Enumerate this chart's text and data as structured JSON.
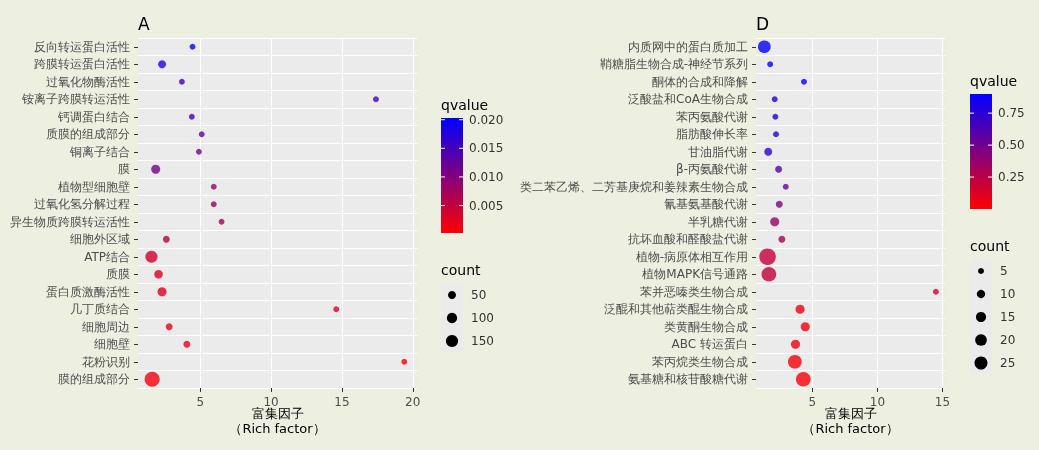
{
  "chart_data": [
    {
      "type": "bubble",
      "title": "A",
      "xlabel": "富集因子（Rich factor）",
      "orientation": "horizontal",
      "grid": true,
      "clabel": "qvalue",
      "legend_title": "count",
      "categories": [
        "反向转运蛋白活性",
        "跨膜转运蛋白活性",
        "过氧化物酶活性",
        "铵离子跨膜转运活性",
        "钙调蛋白结合",
        "质膜的组成部分",
        "铜离子结合",
        "膜",
        "植物型细胞壁",
        "过氧化氢分解过程",
        "异生物质跨膜转运活性",
        "细胞外区域",
        "ATP结合",
        "质膜",
        "蛋白质激酶活性",
        "几丁质结合",
        "细胞周边",
        "细胞壁",
        "花粉识别",
        "膜的组成部分"
      ],
      "values": [
        4.45,
        2.3,
        3.7,
        17.4,
        4.4,
        5.1,
        4.9,
        1.85,
        5.95,
        5.95,
        6.5,
        2.6,
        1.55,
        2.05,
        2.3,
        14.6,
        2.8,
        4.05,
        19.4,
        1.6
      ],
      "sizes": [
        20,
        50,
        20,
        20,
        20,
        20,
        20,
        70,
        20,
        20,
        20,
        33,
        150,
        60,
        70,
        20,
        33,
        33,
        20,
        250
      ],
      "cvalues": [
        0.02,
        0.017,
        0.015,
        0.015,
        0.015,
        0.013,
        0.011,
        0.011,
        0.008,
        0.008,
        0.007,
        0.006,
        0.004,
        0.003,
        0.003,
        0.003,
        0.002,
        0.002,
        0.001,
        0.001
      ],
      "size_legend": [
        50,
        100,
        150
      ],
      "clim": [
        0.0002,
        0.0203
      ],
      "cticks": [
        0.005,
        {
          "value": 0.01,
          "label": "0.010"
        },
        0.015,
        {
          "value": 0.02,
          "label": "0.020"
        }
      ],
      "xlim": [
        0.6,
        20.3
      ],
      "xticks": [
        5,
        10,
        15,
        20
      ]
    },
    {
      "type": "bubble",
      "title": "D",
      "xlabel": "富集因子（Rich factor）",
      "orientation": "horizontal",
      "grid": true,
      "clabel": "qvalue",
      "legend_title": "count",
      "categories": [
        "内质网中的蛋白质加工",
        "鞘糖脂生物合成-神经节系列",
        "酮体的合成和降解",
        "泛酸盐和CoA生物合成",
        "苯丙氨酸代谢",
        "脂肪酸伸长率",
        "甘油脂代谢",
        "β-丙氨酸代谢",
        "类二苯乙烯、二芳基庚烷和姜辣素生物合成",
        "氰基氨基酸代谢",
        "半乳糖代谢",
        "抗坏血酸和醛酸盐代谢",
        "植物-病原体相互作用",
        "植物MAPK信号通路",
        "苯并恶嗪类生物合成",
        "泛醌和其他萜类醌生物合成",
        "类黄酮生物合成",
        "ABC 转运蛋白",
        "苯丙烷类生物合成",
        "氨基糖和核苷酸糖代谢"
      ],
      "values": [
        1.3,
        1.75,
        4.35,
        2.1,
        2.15,
        2.2,
        1.6,
        2.4,
        2.95,
        2.45,
        2.1,
        2.65,
        1.55,
        1.65,
        14.5,
        4.05,
        4.45,
        3.7,
        3.65,
        4.3
      ],
      "sizes": [
        24,
        5,
        5,
        5,
        5,
        5,
        9,
        7,
        5,
        7,
        12,
        7,
        41,
        32,
        5,
        12,
        12,
        12,
        28,
        32
      ],
      "cvalues": [
        0.9,
        0.88,
        0.88,
        0.8,
        0.8,
        0.78,
        0.75,
        0.6,
        0.55,
        0.45,
        0.35,
        0.3,
        0.2,
        0.2,
        0.15,
        0.05,
        0.05,
        0.04,
        0.03,
        0.02
      ],
      "size_legend": [
        5,
        10,
        15,
        20,
        25
      ],
      "clim": [
        0.0,
        0.9
      ],
      "cticks": [
        0.25,
        {
          "value": 0.5,
          "label": "0.50"
        },
        0.75
      ],
      "xlim": [
        0.66,
        15.2
      ],
      "xticks": [
        5,
        10,
        15
      ]
    }
  ]
}
